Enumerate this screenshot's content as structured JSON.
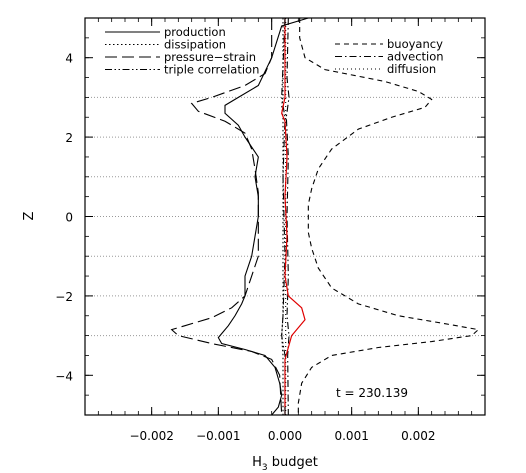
{
  "chart_data": {
    "type": "line",
    "xlabel": "H",
    "xlabel_subscript": "3",
    "xlabel_suffix": " budget",
    "ylabel": "Z",
    "xlim": [
      -0.003,
      0.003
    ],
    "ylim": [
      -5,
      5
    ],
    "x_ticks": [
      -0.002,
      -0.001,
      0.0,
      0.001,
      0.002
    ],
    "x_tick_labels": [
      "−0.002",
      "−0.001",
      "0.000",
      "0.001",
      "0.002"
    ],
    "y_ticks": [
      -4,
      -2,
      0,
      2,
      4
    ],
    "y_tick_labels": [
      "−4",
      "−2",
      "0",
      "2",
      "4"
    ],
    "grid": "horizontal dotted lines at z = -3, -2, -1, 0, 1, 2, 3",
    "grid_lines_y": [
      -3,
      -2,
      -1,
      0,
      1,
      2,
      3
    ],
    "annotation": "t = 230.139",
    "legend_left": [
      "production",
      "dissipation",
      "pressure−strain",
      "triple correlation"
    ],
    "legend_right": [
      "buoyancy",
      "advection",
      "diffusion"
    ],
    "series": [
      {
        "name": "production",
        "dash": "solid",
        "color": "#000000",
        "points": [
          [
            0.00035,
            5.0
          ],
          [
            -5e-05,
            4.8
          ],
          [
            -0.0002,
            4.0
          ],
          [
            -0.0004,
            3.3
          ],
          [
            -0.0007,
            3.0
          ],
          [
            -0.0009,
            2.8
          ],
          [
            -0.0009,
            2.6
          ],
          [
            -0.0007,
            2.3
          ],
          [
            -0.0006,
            2.0
          ],
          [
            -0.0004,
            1.5
          ],
          [
            -0.00045,
            1.0
          ],
          [
            -0.0004,
            0.5
          ],
          [
            -0.0004,
            0.0
          ],
          [
            -0.00045,
            -0.5
          ],
          [
            -0.0005,
            -1.0
          ],
          [
            -0.0006,
            -1.5
          ],
          [
            -0.0006,
            -2.0
          ],
          [
            -0.00065,
            -2.2
          ],
          [
            -0.00075,
            -2.5
          ],
          [
            -0.00085,
            -2.75
          ],
          [
            -0.001,
            -3.05
          ],
          [
            -0.00095,
            -3.2
          ],
          [
            -0.0006,
            -3.35
          ],
          [
            -0.0003,
            -3.5
          ],
          [
            -0.00015,
            -3.8
          ],
          [
            -8e-05,
            -4.2
          ],
          [
            -5e-05,
            -4.5
          ],
          [
            -0.0001,
            -4.8
          ],
          [
            -0.0002,
            -5.0
          ]
        ]
      },
      {
        "name": "pressure−strain",
        "dash": "long",
        "color": "#000000",
        "points": [
          [
            -0.0002,
            5.0
          ],
          [
            -0.0002,
            4.0
          ],
          [
            -0.0003,
            3.6
          ],
          [
            -0.0006,
            3.3
          ],
          [
            -0.0011,
            3.0
          ],
          [
            -0.0014,
            2.85
          ],
          [
            -0.0013,
            2.65
          ],
          [
            -0.0009,
            2.4
          ],
          [
            -0.0006,
            2.1
          ],
          [
            -0.0005,
            1.7
          ],
          [
            -0.00045,
            1.2
          ],
          [
            -0.0004,
            0.6
          ],
          [
            -0.0004,
            0.0
          ],
          [
            -0.0004,
            -0.5
          ],
          [
            -0.0004,
            -1.0
          ],
          [
            -0.0005,
            -1.5
          ],
          [
            -0.0006,
            -2.0
          ],
          [
            -0.0008,
            -2.3
          ],
          [
            -0.0011,
            -2.55
          ],
          [
            -0.0015,
            -2.75
          ],
          [
            -0.0017,
            -2.85
          ],
          [
            -0.0016,
            -3.0
          ],
          [
            -0.0011,
            -3.2
          ],
          [
            -0.0005,
            -3.4
          ],
          [
            -0.0002,
            -3.6
          ],
          [
            -8e-05,
            -4.0
          ],
          [
            -5e-05,
            -5.0
          ]
        ]
      },
      {
        "name": "buoyancy",
        "dash": "short",
        "color": "#000000",
        "points": [
          [
            0.00022,
            5.0
          ],
          [
            0.00022,
            4.5
          ],
          [
            0.0003,
            4.0
          ],
          [
            0.0006,
            3.7
          ],
          [
            0.0015,
            3.4
          ],
          [
            0.002,
            3.15
          ],
          [
            0.0022,
            2.95
          ],
          [
            0.0021,
            2.75
          ],
          [
            0.0016,
            2.5
          ],
          [
            0.0011,
            2.2
          ],
          [
            0.0007,
            1.7
          ],
          [
            0.0005,
            1.2
          ],
          [
            0.0004,
            0.7
          ],
          [
            0.00035,
            0.3
          ],
          [
            0.00035,
            0.0
          ],
          [
            0.00035,
            -0.4
          ],
          [
            0.0004,
            -0.8
          ],
          [
            0.0005,
            -1.3
          ],
          [
            0.0007,
            -1.8
          ],
          [
            0.0011,
            -2.2
          ],
          [
            0.0017,
            -2.5
          ],
          [
            0.0024,
            -2.7
          ],
          [
            0.0029,
            -2.85
          ],
          [
            0.0028,
            -3.0
          ],
          [
            0.0022,
            -3.15
          ],
          [
            0.0014,
            -3.3
          ],
          [
            0.0007,
            -3.5
          ],
          [
            0.0004,
            -3.8
          ],
          [
            0.00025,
            -4.2
          ],
          [
            0.0002,
            -4.7
          ],
          [
            0.0002,
            -5.0
          ]
        ]
      },
      {
        "name": "advection",
        "dash": "dashdot",
        "color": "#000000",
        "points": [
          [
            5e-05,
            5.0
          ],
          [
            3e-05,
            3.5
          ],
          [
            6e-05,
            3.0
          ],
          [
            2e-05,
            2.5
          ],
          [
            5e-05,
            1.5
          ],
          [
            3e-05,
            0.0
          ],
          [
            5e-05,
            -1.5
          ],
          [
            3e-05,
            -2.5
          ],
          [
            6e-05,
            -3.0
          ],
          [
            4e-05,
            -3.5
          ],
          [
            5e-05,
            -5.0
          ]
        ]
      },
      {
        "name": "triple correlation",
        "dash": "dashdotdot",
        "color": "#000000",
        "points": [
          [
            0.0,
            5.0
          ],
          [
            -5e-05,
            3.0
          ],
          [
            0.0,
            2.5
          ],
          [
            -3e-05,
            1.0
          ],
          [
            0.0,
            -1.0
          ],
          [
            -3e-05,
            -2.5
          ],
          [
            -5e-05,
            -3.0
          ],
          [
            0.0,
            -3.5
          ],
          [
            0.0,
            -5.0
          ]
        ]
      },
      {
        "name": "dissipation",
        "dash": "dotted",
        "color": "#000000",
        "points": [
          [
            -3e-05,
            5.0
          ],
          [
            -3e-05,
            3.0
          ],
          [
            -5e-05,
            2.8
          ],
          [
            -3e-05,
            2.5
          ],
          [
            -3e-05,
            -2.5
          ],
          [
            -5e-05,
            -3.0
          ],
          [
            -3e-05,
            -3.5
          ],
          [
            -3e-05,
            -5.0
          ]
        ]
      },
      {
        "name": "diffusion",
        "dash": "fine-dotted",
        "color": "#000000",
        "points": [
          [
            1e-05,
            5.0
          ],
          [
            1e-05,
            -5.0
          ]
        ]
      },
      {
        "name": "",
        "dash": "solid",
        "color": "#e00000",
        "points": [
          [
            0.0,
            5.0
          ],
          [
            0.0,
            3.0
          ],
          [
            -5e-05,
            2.6
          ],
          [
            0.0,
            2.4
          ],
          [
            3e-05,
            1.5
          ],
          [
            0.0,
            0.5
          ],
          [
            3e-05,
            -0.5
          ],
          [
            0.0,
            -1.5
          ],
          [
            5e-05,
            -2.0
          ],
          [
            0.00025,
            -2.3
          ],
          [
            0.0003,
            -2.6
          ],
          [
            0.0001,
            -3.0
          ],
          [
            5e-05,
            -3.3
          ],
          [
            0.0,
            -3.6
          ],
          [
            0.0,
            -5.0
          ]
        ]
      }
    ]
  }
}
